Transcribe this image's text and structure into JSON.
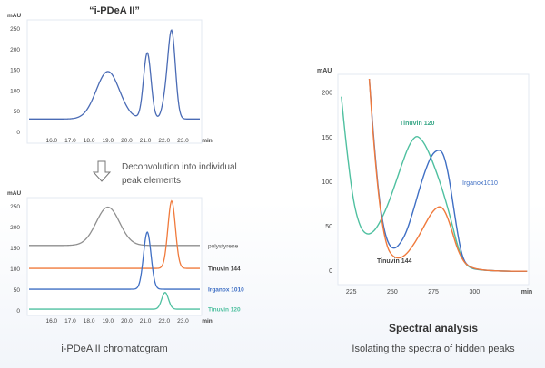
{
  "top_title": "“i-PDeA II”",
  "deconvolution_text_1": "Deconvolution into individual",
  "deconvolution_text_2": "peak elements",
  "caption_left": "i-PDeA II chromatogram",
  "heading_right": "Spectral analysis",
  "caption_right": "Isolating the spectra of hidden peaks",
  "colors": {
    "frame": "#e6ebf3",
    "mixture": "#4a6bb5",
    "polystyrene": "#8f8f8f",
    "tinuvin144": "#f07a3c",
    "irganox1010": "#3f6fc4",
    "tinuvin120": "#4fc0a0",
    "axis_text": "#444444"
  },
  "chart_data": [
    {
      "type": "line",
      "name": "mixture-chromatogram",
      "ylabel": "mAU",
      "xlabel": "min",
      "xlim": [
        14.8,
        23.9
      ],
      "ylim": [
        0,
        270
      ],
      "x_ticks": [
        "16.0",
        "17.0",
        "18.0",
        "19.0",
        "20.0",
        "21.0",
        "22.0",
        "23.0"
      ],
      "y_ticks": [
        "0",
        "50",
        "100",
        "150",
        "200",
        "250"
      ],
      "series": [
        {
          "name": "",
          "baseline": 30,
          "peaks": [
            {
              "center": 19.0,
              "height": 115,
              "width": 0.62
            },
            {
              "center": 21.1,
              "height": 160,
              "width": 0.2
            },
            {
              "center": 22.05,
              "height": 35,
              "width": 0.18
            },
            {
              "center": 22.4,
              "height": 210,
              "width": 0.2
            }
          ]
        }
      ]
    },
    {
      "type": "line",
      "name": "deconvoluted-chromatogram",
      "ylabel": "mAU",
      "xlabel": "min",
      "xlim": [
        14.8,
        23.9
      ],
      "ylim": [
        0,
        270
      ],
      "x_ticks": [
        "16.0",
        "17.0",
        "18.0",
        "19.0",
        "20.0",
        "21.0",
        "22.0",
        "23.0"
      ],
      "y_ticks": [
        "0",
        "50",
        "100",
        "150",
        "200",
        "250"
      ],
      "series": [
        {
          "name": "polystyrene",
          "color": "#8f8f8f",
          "baseline": 155,
          "peaks": [
            {
              "center": 19.0,
              "height": 92,
              "width": 0.62
            }
          ]
        },
        {
          "name": "Tinuvin 144",
          "color": "#f07a3c",
          "baseline": 100,
          "peaks": [
            {
              "center": 22.4,
              "height": 162,
              "width": 0.2
            }
          ]
        },
        {
          "name": "Irganox 1010",
          "color": "#3f6fc4",
          "baseline": 50,
          "peaks": [
            {
              "center": 21.1,
              "height": 137,
              "width": 0.2
            }
          ]
        },
        {
          "name": "Tinuvin 120",
          "color": "#4fc0a0",
          "baseline": 2,
          "peaks": [
            {
              "center": 22.05,
              "height": 40,
              "width": 0.18
            }
          ]
        }
      ]
    },
    {
      "type": "line",
      "name": "spectra",
      "ylabel": "mAU",
      "xlabel": "min",
      "xlim": [
        218,
        333
      ],
      "ylim": [
        -12,
        215
      ],
      "x_ticks": [
        "225",
        "250",
        "275",
        "300"
      ],
      "y_ticks": [
        "0",
        "50",
        "100",
        "150",
        "200"
      ],
      "series": [
        {
          "name": "Tinuvin 120",
          "color": "#4fc0a0",
          "points": [
            [
              219,
              195
            ],
            [
              222,
              140
            ],
            [
              226,
              80
            ],
            [
              230,
              50
            ],
            [
              234,
              40
            ],
            [
              238,
              42
            ],
            [
              242,
              52
            ],
            [
              247,
              72
            ],
            [
              252,
              98
            ],
            [
              256,
              120
            ],
            [
              260,
              140
            ],
            [
              264,
              151
            ],
            [
              267,
              149
            ],
            [
              271,
              138
            ],
            [
              276,
              115
            ],
            [
              281,
              88
            ],
            [
              286,
              55
            ],
            [
              290,
              25
            ],
            [
              294,
              8
            ],
            [
              298,
              2
            ],
            [
              305,
              0
            ],
            [
              320,
              -1
            ],
            [
              332,
              -1
            ]
          ]
        },
        {
          "name": "Irganox1010",
          "color": "#3f6fc4",
          "points": [
            [
              236,
              215
            ],
            [
              239,
              140
            ],
            [
              242,
              80
            ],
            [
              245,
              45
            ],
            [
              248,
              28
            ],
            [
              251,
              24
            ],
            [
              254,
              28
            ],
            [
              258,
              40
            ],
            [
              262,
              62
            ],
            [
              266,
              88
            ],
            [
              270,
              112
            ],
            [
              274,
              130
            ],
            [
              278,
              136
            ],
            [
              281,
              132
            ],
            [
              284,
              110
            ],
            [
              287,
              75
            ],
            [
              290,
              38
            ],
            [
              293,
              12
            ],
            [
              297,
              3
            ],
            [
              305,
              0
            ],
            [
              320,
              -1
            ],
            [
              332,
              -1
            ]
          ]
        },
        {
          "name": "Tinuvin 144",
          "color": "#f07a3c",
          "points": [
            [
              236,
              215
            ],
            [
              238,
              160
            ],
            [
              241,
              95
            ],
            [
              244,
              50
            ],
            [
              247,
              25
            ],
            [
              250,
              16
            ],
            [
              254,
              13
            ],
            [
              258,
              17
            ],
            [
              262,
              26
            ],
            [
              266,
              38
            ],
            [
              270,
              52
            ],
            [
              274,
              65
            ],
            [
              278,
              72
            ],
            [
              281,
              70
            ],
            [
              284,
              58
            ],
            [
              287,
              40
            ],
            [
              290,
              22
            ],
            [
              294,
              8
            ],
            [
              298,
              3
            ],
            [
              305,
              0
            ],
            [
              320,
              -1
            ],
            [
              332,
              -1
            ]
          ]
        }
      ]
    }
  ]
}
